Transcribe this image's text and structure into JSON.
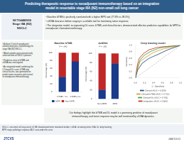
{
  "title": "Predicting therapeutic response to neoadjuvant immunotherapy based on an integration\nmodel in resectable stage IIIA (N2) non-small cell lung cancer",
  "annotations": [
    "NCT04482959\nStage IIIA (N2)\nNSCLC",
    "• Baseline bTMB is positively correlated with a higher MPR rate (77.8% vs 38.5%);",
    "• ctDNA clearance before surgery is a reliable tool for monitoring tumor response;",
    "• The integration model, incorporating DL score, bTMB, and clinical factors, demonstrated effective predictive capabilities for MPR to neoadjuvant chemoimmunotherapy.",
    "• A phase II trial of neoadjuvant\natezolizumab plus chemotherapy for\nstage IIIA (N2) NSCLC.",
    "• Blood samples were prospectively\ncollected from all NSCLC patients.",
    "• Predictive value of bTMB and\nctDNA was investigated.",
    "• An integrated model combining the\nCT-based DL score, bTMB and\nclinical factors, was generated for\npredict tumor response and survival\nto neoadjuvant immunotherapy.",
    "Our findings highlight that bTMB and DL model is a promising predictor of neoadjuvant",
    "immunotherapy, and tumor response may be well monitored by ctDNA dynamics.",
    "NSCLC: non-small cell lung cancer; bTMB: blood-based tumor mutational burden; ctDNA: circulating tumor DNA; DL: deep learning;",
    "MPR: major pathologic response; AUC: area under the curve",
    "JTCVS",
    "#AATS2023"
  ],
  "chart_data": [
    {
      "type": "bar",
      "stacked": true,
      "title": "Baseline bTMB",
      "subtitle": "P = .042",
      "categories": [
        "bTMB < 11",
        "bTMB ≥ 11"
      ],
      "series": [
        {
          "name": "MPR",
          "color": "#1a3a8a",
          "values": [
            38.5,
            77.8
          ]
        },
        {
          "name": "Non-MPR",
          "color": "#c02828",
          "values": [
            61.5,
            22.2
          ]
        }
      ],
      "ylabel": "Percentage (%)",
      "ylim": [
        0,
        110
      ],
      "yticks": [
        0,
        20,
        40,
        60,
        80,
        100
      ],
      "grid": false,
      "legend": "bottom"
    },
    {
      "type": "bar",
      "stacked": true,
      "title": "ΔctDNA",
      "subtitle": "P = .001",
      "categories": [
        "Non-MPR",
        "MPR"
      ],
      "series": [
        {
          "name": "MPR",
          "color": "#1a3a8a",
          "values": [
            20.0,
            78.0
          ]
        },
        {
          "name": "Non-MPR",
          "color": "#c02828",
          "values": [
            80.0,
            22.0
          ]
        }
      ],
      "ylabel": "Percentage (%)",
      "ylim": [
        0,
        110
      ],
      "yticks": [
        0,
        20,
        40,
        60,
        80,
        100
      ],
      "grid": false
    },
    {
      "type": "line",
      "title": "Deep learning model",
      "xlabel": "1 - Specificity",
      "ylabel": "Sensitivity",
      "xlim": [
        0,
        1
      ],
      "ylim": [
        0,
        1
      ],
      "xticks": [
        {
          "value": 0,
          "label": "0.0"
        },
        0.2,
        0.4,
        0.6,
        0.8,
        {
          "value": 1,
          "label": "1.0"
        }
      ],
      "yticks": [
        {
          "value": 0,
          "label": "0.0"
        },
        0.2,
        0.4,
        0.6,
        0.8,
        {
          "value": 1,
          "label": "1.0"
        }
      ],
      "grid": false,
      "legend": "bottom",
      "series": [
        {
          "name": "Clinical (AUC = 0.639)",
          "color": "#2a5080",
          "line_style": "solid",
          "x": [
            0,
            0.05,
            0.15,
            0.3,
            0.5,
            0.7,
            1.0
          ],
          "values": [
            0,
            0.25,
            0.45,
            0.6,
            0.72,
            0.85,
            1.0
          ]
        },
        {
          "name": "Clinical+bTMB (AUC = 0.721)",
          "color": "#d4a030",
          "line_style": "solid",
          "x": [
            0,
            0.05,
            0.1,
            0.25,
            0.4,
            0.6,
            1.0
          ],
          "values": [
            0,
            0.3,
            0.5,
            0.65,
            0.78,
            0.88,
            1.0
          ]
        },
        {
          "name": "Clinical+DL (AUC = 0.781)",
          "color": "#48a050",
          "line_style": "solid",
          "x": [
            0,
            0.05,
            0.1,
            0.2,
            0.35,
            0.55,
            1.0
          ],
          "values": [
            0,
            0.35,
            0.55,
            0.7,
            0.82,
            0.92,
            1.0
          ]
        },
        {
          "name": "Integration (AUC = 0.820)",
          "color": "#c83820",
          "line_style": "solid",
          "x": [
            0,
            0.04,
            0.08,
            0.18,
            0.3,
            0.5,
            1.0
          ],
          "values": [
            0,
            0.4,
            0.6,
            0.75,
            0.86,
            0.94,
            1.0
          ]
        },
        {
          "color": "#888888",
          "line_style": "dashed",
          "x": [
            0,
            1
          ],
          "values": [
            0,
            1
          ]
        }
      ]
    }
  ]
}
